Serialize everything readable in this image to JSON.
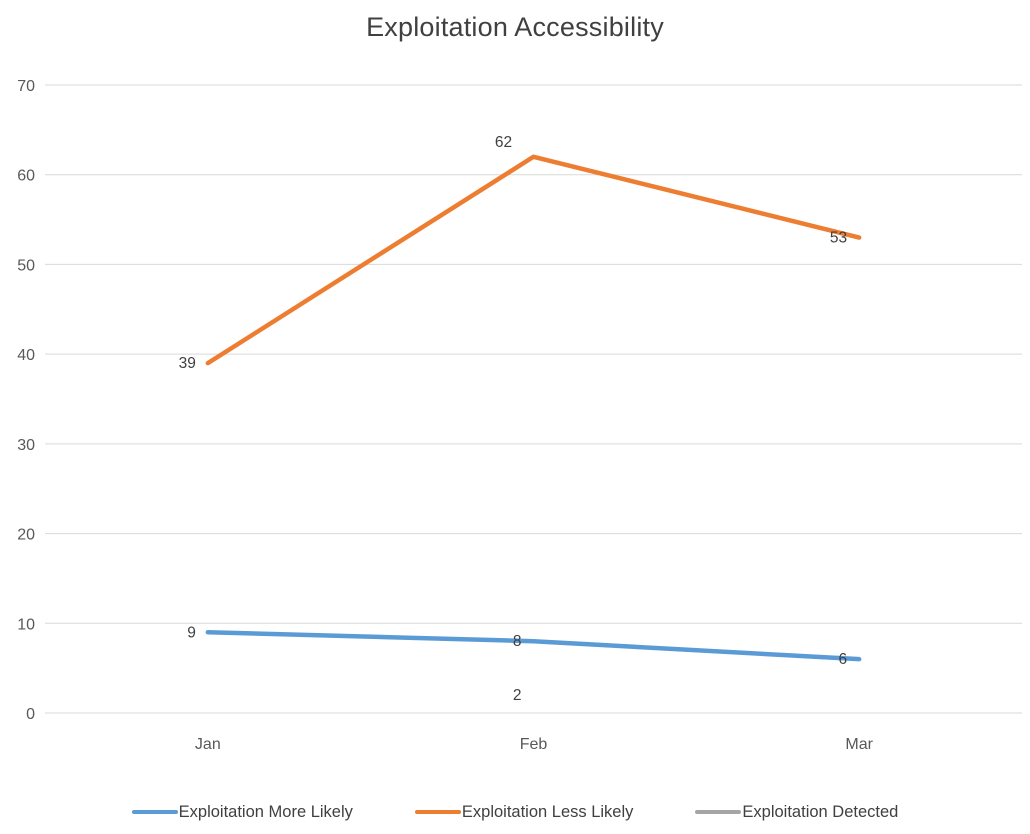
{
  "chart_data": {
    "type": "line",
    "title": "Exploitation Accessibility",
    "categories": [
      "Jan",
      "Feb",
      "Mar"
    ],
    "series": [
      {
        "name": "Exploitation More Likely",
        "color": "#5B9BD5",
        "values": [
          9,
          8,
          6
        ],
        "label_placement": [
          "left",
          "left",
          "left"
        ]
      },
      {
        "name": "Exploitation Less Likely",
        "color": "#ED7D31",
        "values": [
          39,
          62,
          53
        ],
        "label_placement": [
          "left",
          "above",
          "left"
        ]
      },
      {
        "name": "Exploitation Detected",
        "color": "#A5A5A5",
        "values": [
          null,
          2,
          null
        ],
        "label_placement": [
          "left",
          "left",
          "left"
        ]
      }
    ],
    "ylim": [
      0,
      70
    ],
    "ytick_step": 10,
    "ytick_labels": [
      "0",
      "10",
      "20",
      "30",
      "40",
      "50",
      "60",
      "70"
    ],
    "grid": true,
    "legend_position": "bottom",
    "colors": {
      "grid": "#D9D9D9",
      "axis_text": "#595959",
      "title_text": "#404040",
      "label_text": "#404040",
      "background": "#FFFFFF"
    }
  }
}
